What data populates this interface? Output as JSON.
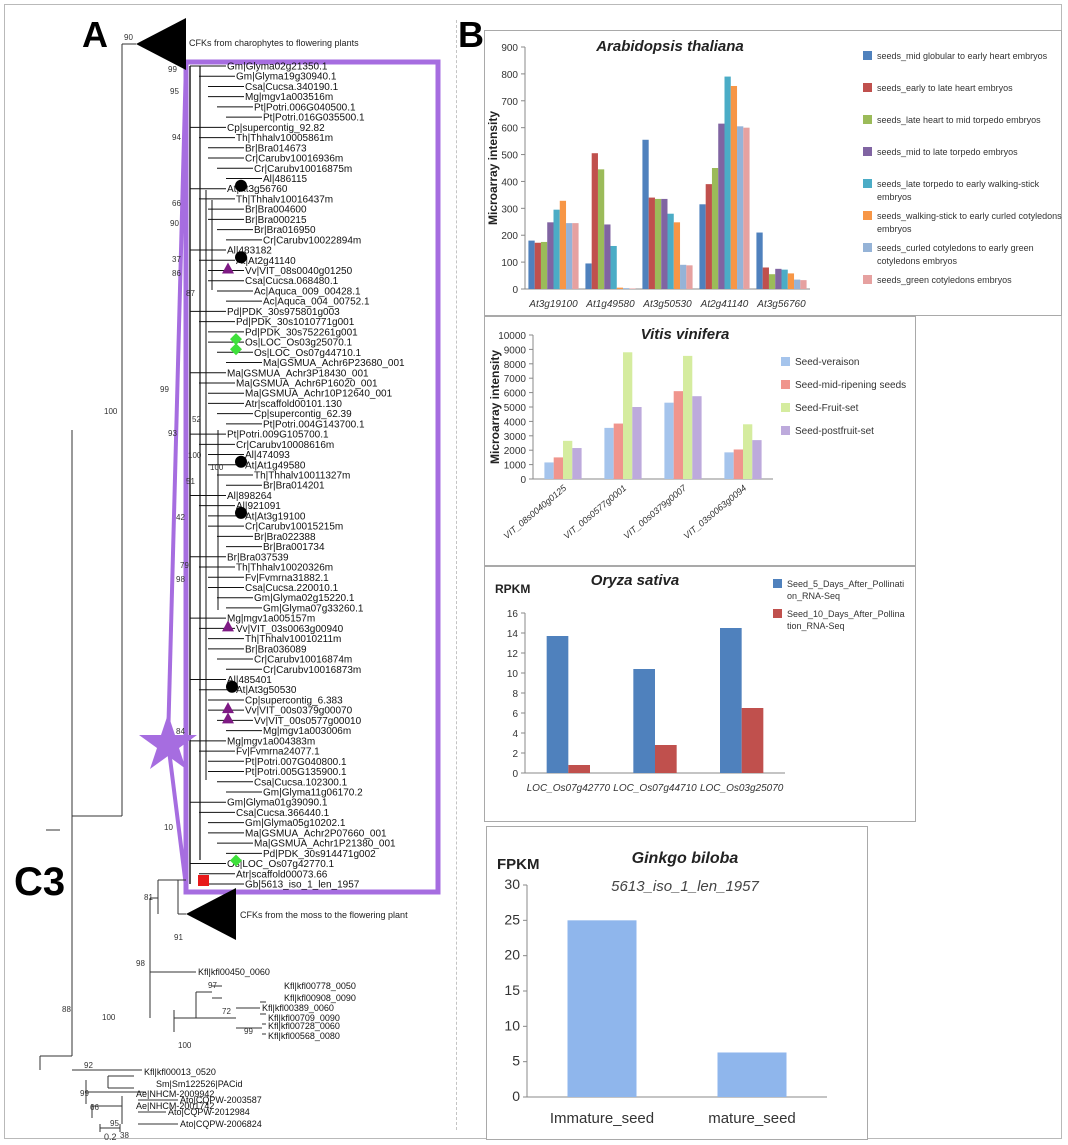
{
  "figure": {
    "panel_a_letter": "A",
    "panel_b_letter": "B",
    "panel_c3_label": "C3",
    "scale_label": "0.2"
  },
  "tree": {
    "top_clade_label": "CFKs from charophytes to flowering plants",
    "bottom_clade_label": "CFKs from the moss to the flowering plant",
    "leaves_boxed": [
      "Gm|Glyma02g21350.1",
      "Gm|Glyma19g30940.1",
      "Csa|Cucsa.340190.1",
      "Mg|mgv1a003516m",
      "Pt|Potri.006G040500.1",
      "Pt|Potri.016G035500.1",
      "Cp|supercontig_92.82",
      "Th|Thhalv10005861m",
      "Br|Bra014673",
      "Cr|Carubv10016936m",
      "Cr|Carubv10016875m",
      "Al|486115",
      "At|At3g56760",
      "Th|Thhalv10016437m",
      "Br|Bra004600",
      "Br|Bra000215",
      "Br|Bra016950",
      "Cr|Carubv10022894m",
      "Al|483182",
      "At|At2g41140",
      "Vv|VIT_08s0040g01250",
      "Csa|Cucsa.068480.1",
      "Ac|Aquca_009_00428.1",
      "Ac|Aquca_004_00752.1",
      "Pd|PDK_30s975801g003",
      "Pd|PDK_30s1010771g001",
      "Pd|PDK_30s752261g001",
      "Os|LOC_Os03g25070.1",
      "Os|LOC_Os07g44710.1",
      "Ma|GSMUA_Achr6P23680_001",
      "Ma|GSMUA_Achr3P18430_001",
      "Ma|GSMUA_Achr6P16020_001",
      "Ma|GSMUA_Achr10P12640_001",
      "Atr|scaffold00101.130",
      "Cp|supercontig_62.39",
      "Pt|Potri.004G143700.1",
      "Pt|Potri.009G105700.1",
      "Cr|Carubv10008616m",
      "Al|474093",
      "At|At1g49580",
      "Th|Thhalv10011327m",
      "Br|Bra014201",
      "Al|898264",
      "Al|921091",
      "At|At3g19100",
      "Cr|Carubv10015215m",
      "Br|Bra022388",
      "Br|Bra001734",
      "Br|Bra037539",
      "Th|Thhalv10020326m",
      "Fv|Fvmrna31882.1",
      "Csa|Cucsa.220010.1",
      "Gm|Glyma02g15220.1",
      "Gm|Glyma07g33260.1",
      "Mg|mgv1a005157m",
      "Vv|VIT_03s0063g00940",
      "Th|Thhalv10010211m",
      "Br|Bra036089",
      "Cr|Carubv10016874m",
      "Cr|Carubv10016873m",
      "Al|485401",
      "At|At3g50530",
      "Cp|supercontig_6.383",
      "Vv|VIT_00s0379g00070",
      "Vv|VIT_00s0577g00010",
      "Mg|mgv1a003006m",
      "Mg|mgv1a004383m",
      "Fv|Fvmrna24077.1",
      "Pt|Potri.007G040800.1",
      "Pt|Potri.005G135900.1",
      "Csa|Cucsa.102300.1",
      "Gm|Glyma11g06170.2",
      "Gm|Glyma01g39090.1",
      "Csa|Cucsa.366440.1",
      "Gm|Glyma05g10202.1",
      "Ma|GSMUA_Achr2P07660_001",
      "Ma|GSMUA_Achr1P21380_001",
      "Pd|PDK_30s914471g002",
      "Os|LOC_Os07g42770.1",
      "Atr|scaffold00073.66",
      "Gb|5613_iso_1_len_1957"
    ],
    "leaves_outgroup": [
      "Kfl|kfl00450_0060",
      "Kfl|kfl00778_0050",
      "Kfl|kfl00908_0090",
      "Kfl|kfl00389_0060",
      "Kfl|kfl00709_0090",
      "Kfl|kfl00728_0060",
      "Kfl|kfl00568_0080",
      "Kfl|kfl00013_0520",
      "Sm|Sm122526|PACid",
      "Ae|NHCM-2009942",
      "Ae|NHCM-2001742",
      "Ato|CQPW-2003587",
      "Ato|CQPW-2012984",
      "Ato|CQPW-2006824"
    ],
    "support_values": [
      "90",
      "100",
      "88",
      "100",
      "81",
      "98",
      "91",
      "97",
      "72",
      "99",
      "100",
      "92",
      "99",
      "66",
      "95",
      "38",
      "84",
      "10",
      "99",
      "95",
      "94",
      "66",
      "90",
      "37",
      "86",
      "87",
      "99",
      "42",
      "98",
      "79",
      "51",
      "52",
      "93",
      "100",
      "100"
    ],
    "marker_colors": {
      "box": "#a66de0",
      "star": "#a66de0",
      "arabidopsis": "#000000",
      "vitis": "#7e1a84",
      "oryza": "#3ee03a",
      "ginkgo": "#e8191b"
    }
  },
  "chart_data": [
    {
      "type": "bar",
      "title": "Arabidopsis thaliana",
      "ylabel": "Microarray intensity",
      "xlabel": "",
      "ylim": [
        0,
        900
      ],
      "yticks": [
        0,
        100,
        200,
        300,
        400,
        500,
        600,
        700,
        800,
        900
      ],
      "categories": [
        "At3g19100",
        "At1g49580",
        "At3g50530",
        "At2g41140",
        "At3g56760"
      ],
      "legend_position": "right",
      "grid": false,
      "series": [
        {
          "name": "seeds_mid globular to early heart embryos",
          "color": "#4f81bd",
          "values": [
            180,
            95,
            555,
            315,
            210
          ]
        },
        {
          "name": "seeds_early to late heart embryos",
          "color": "#c0504d",
          "values": [
            172,
            505,
            340,
            390,
            80
          ]
        },
        {
          "name": "seeds_late heart to mid torpedo embryos",
          "color": "#9bbb59",
          "values": [
            175,
            445,
            335,
            450,
            55
          ]
        },
        {
          "name": "seeds_mid to late torpedo embryos",
          "color": "#8064a2",
          "values": [
            248,
            240,
            335,
            615,
            75
          ]
        },
        {
          "name": "seeds_late torpedo to early walking-stick embryos",
          "color": "#4bacc6",
          "values": [
            295,
            160,
            280,
            790,
            72
          ]
        },
        {
          "name": "seeds_walking-stick to early curled cotyledons embryos",
          "color": "#f79646",
          "values": [
            328,
            5,
            248,
            755,
            58
          ]
        },
        {
          "name": "seeds_curled cotyledons to early green cotyledons embryos",
          "color": "#95b3d7",
          "values": [
            245,
            3,
            90,
            605,
            35
          ]
        },
        {
          "name": "seeds_green cotyledons embryos",
          "color": "#e6a1a0",
          "values": [
            245,
            2,
            88,
            600,
            33
          ]
        }
      ]
    },
    {
      "type": "bar",
      "title": "Vitis vinifera",
      "ylabel": "Microarray intensity",
      "xlabel": "",
      "ylim": [
        0,
        10000
      ],
      "yticks": [
        0,
        1000,
        2000,
        3000,
        4000,
        5000,
        6000,
        7000,
        8000,
        9000,
        10000
      ],
      "categories": [
        "VIT_08s0040g0125",
        "VIT_00s0577g0001",
        "VIT_00s0379g0007",
        "VIT_03s0063g0094"
      ],
      "legend_position": "right",
      "grid": false,
      "series": [
        {
          "name": "Seed-veraison",
          "color": "#a5c4ec",
          "values": [
            1150,
            3550,
            5300,
            1850
          ]
        },
        {
          "name": "Seed-mid-ripening seeds",
          "color": "#f0958d",
          "values": [
            1500,
            3850,
            6100,
            2050
          ]
        },
        {
          "name": "Seed-Fruit-set",
          "color": "#d5ec9f",
          "values": [
            2650,
            8800,
            8550,
            3800
          ]
        },
        {
          "name": "Seed-postfruit-set",
          "color": "#bdaadc",
          "values": [
            2150,
            5000,
            5750,
            2700
          ]
        }
      ]
    },
    {
      "type": "bar",
      "title": "Oryza sativa",
      "ylabel": "RPKM",
      "xlabel": "",
      "ylim": [
        0,
        16
      ],
      "yticks": [
        0,
        2,
        4,
        6,
        8,
        10,
        12,
        14,
        16
      ],
      "categories": [
        "LOC_Os07g42770",
        "LOC_Os07g44710",
        "LOC_Os03g25070"
      ],
      "legend_position": "top-right",
      "grid": false,
      "series": [
        {
          "name": "Seed_5_Days_After_Pollination_RNA-Seq",
          "legend_lines": [
            "Seed_5_Days_After_Pollinati",
            "on_RNA-Seq"
          ],
          "color": "#4f81bd",
          "values": [
            13.7,
            10.4,
            14.5
          ]
        },
        {
          "name": "Seed_10_Days_After_Pollination_RNA-Seq",
          "legend_lines": [
            "Seed_10_Days_After_Pollina",
            "tion_RNA-Seq"
          ],
          "color": "#c0504d",
          "values": [
            0.8,
            2.8,
            6.5
          ]
        }
      ]
    },
    {
      "type": "bar",
      "title": "Ginkgo biloba",
      "subtitle": "5613_iso_1_len_1957",
      "ylabel": "FPKM",
      "xlabel": "",
      "ylim": [
        0,
        30
      ],
      "yticks": [
        0,
        5,
        10,
        15,
        20,
        25,
        30
      ],
      "categories": [
        "Immature_seed",
        "mature_seed"
      ],
      "grid": false,
      "series": [
        {
          "name": "",
          "color": "#8fb6ec",
          "values": [
            25,
            6.3
          ]
        }
      ]
    }
  ]
}
